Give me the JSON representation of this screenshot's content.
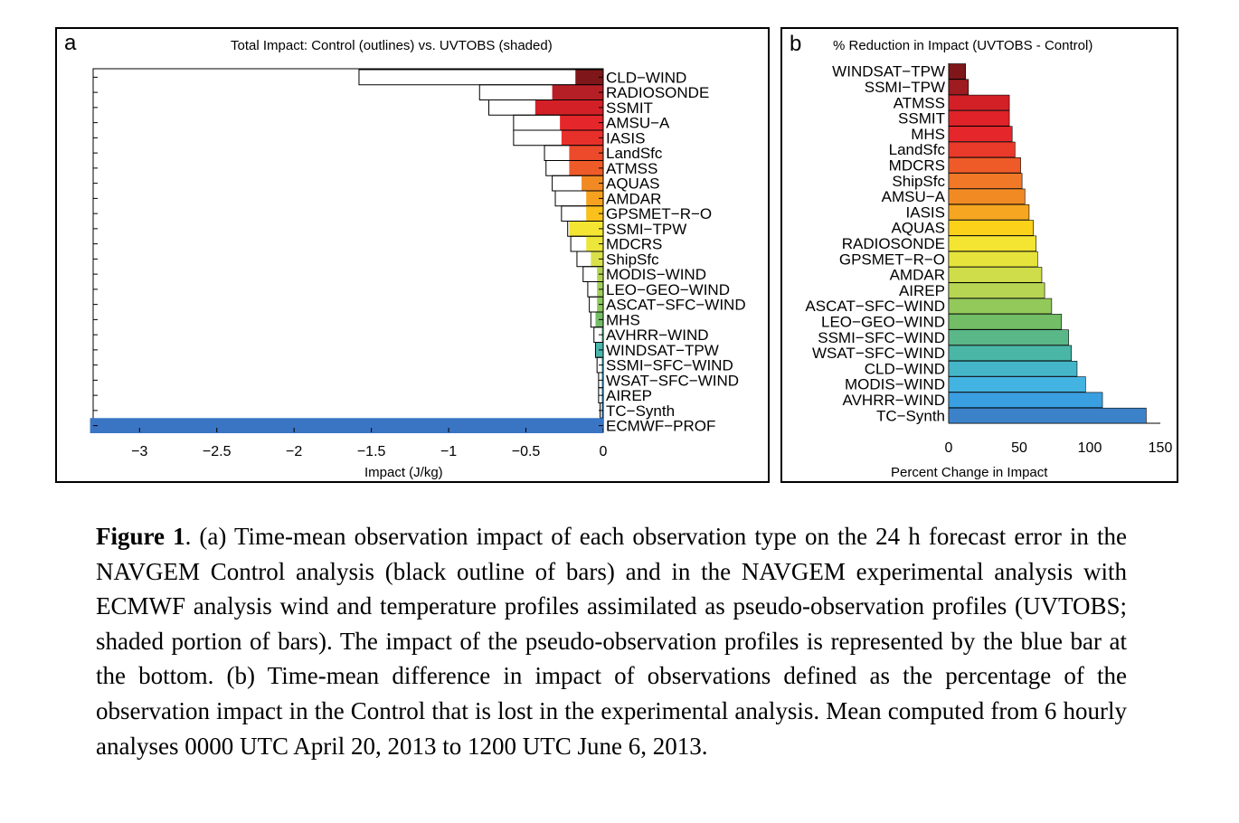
{
  "chart_data": [
    {
      "type": "bar",
      "orientation": "horizontal",
      "panel_label": "a",
      "title": "Total Impact: Control (outlines) vs. UVTOBS (shaded)",
      "xlabel": "Impact (J/kg)",
      "ylabel": "",
      "xlim": [
        -3.3,
        0
      ],
      "xticks": [
        -3,
        -2.5,
        -2,
        -1.5,
        -1,
        -0.5,
        0
      ],
      "xtick_labels": [
        "−3",
        "−2.5",
        "−2",
        "−1.5",
        "−1",
        "−0.5",
        "0"
      ],
      "categories": [
        "CLD−WIND",
        "RADIOSONDE",
        "SSMIT",
        "AMSU−A",
        "IASIS",
        "LandSfc",
        "ATMSS",
        "AQUAS",
        "AMDAR",
        "GPSMET−R−O",
        "SSMI−TPW",
        "MDCRS",
        "ShipSfc",
        "MODIS−WIND",
        "LEO−GEO−WIND",
        "ASCAT−SFC−WIND",
        "MHS",
        "AVHRR−WIND",
        "WINDSAT−TPW",
        "SSMI−SFC−WIND",
        "WSAT−SFC−WIND",
        "AIREP",
        "TC−Synth",
        "ECMWF−PROF"
      ],
      "series": [
        {
          "name": "Control",
          "style": "outline",
          "values": [
            -1.58,
            -0.8,
            -0.74,
            -0.58,
            -0.58,
            -0.38,
            -0.37,
            -0.33,
            -0.31,
            -0.27,
            -0.23,
            -0.21,
            -0.17,
            -0.13,
            -0.1,
            -0.09,
            -0.08,
            -0.06,
            -0.05,
            -0.04,
            -0.03,
            -0.03,
            -0.02,
            0
          ]
        },
        {
          "name": "UVTOBS",
          "style": "shaded",
          "values": [
            -0.18,
            -0.33,
            -0.44,
            -0.28,
            -0.27,
            -0.22,
            -0.22,
            -0.14,
            -0.11,
            -0.11,
            -0.22,
            -0.11,
            -0.08,
            -0.04,
            -0.04,
            -0.04,
            -0.05,
            -0.01,
            -0.05,
            -0.01,
            -0.01,
            -0.01,
            -0.01,
            -3.32
          ]
        }
      ],
      "colors": [
        "#7f1619",
        "#b71f26",
        "#d32027",
        "#e5262a",
        "#e8302b",
        "#ec4a2a",
        "#ee5a28",
        "#f28a24",
        "#f6a220",
        "#fac01b",
        "#f3e532",
        "#ece63b",
        "#d9e04a",
        "#b2d352",
        "#a0ce5c",
        "#8cc75e",
        "#72bd66",
        "#5ab788",
        "#49b6ab",
        "#45b3c6",
        "#43ade0",
        "#3f9fe0",
        "#3d86cf",
        "#3a75c4"
      ],
      "grid": false
    },
    {
      "type": "bar",
      "orientation": "horizontal",
      "panel_label": "b",
      "title": "% Reduction in Impact (UVTOBS - Control)",
      "xlabel": "Percent Change in Impact",
      "ylabel": "",
      "xlim": [
        0,
        150
      ],
      "xticks": [
        0,
        50,
        100,
        150
      ],
      "xtick_labels": [
        "0",
        "50",
        "100",
        "150"
      ],
      "categories": [
        "WINDSAT−TPW",
        "SSMI−TPW",
        "ATMSS",
        "SSMIT",
        "MHS",
        "LandSfc",
        "MDCRS",
        "ShipSfc",
        "AMSU−A",
        "IASIS",
        "AQUAS",
        "RADIOSONDE",
        "GPSMET−R−O",
        "AMDAR",
        "AIREP",
        "ASCAT−SFC−WIND",
        "LEO−GEO−WIND",
        "SSMI−SFC−WIND",
        "WSAT−SFC−WIND",
        "CLD−WIND",
        "MODIS−WIND",
        "AVHRR−WIND",
        "TC−Synth"
      ],
      "values": [
        12,
        14,
        43,
        43,
        45,
        47,
        51,
        52,
        54,
        57,
        60,
        62,
        63,
        66,
        68,
        73,
        80,
        85,
        87,
        91,
        97,
        109,
        140
      ],
      "colors": [
        "#7f1619",
        "#9e1b20",
        "#d32027",
        "#df2329",
        "#e5262a",
        "#ea3a2a",
        "#ee5a28",
        "#f07826",
        "#f28a24",
        "#f6a620",
        "#fbd11a",
        "#f3e532",
        "#e6e43c",
        "#cfdd4a",
        "#b7d552",
        "#92c95a",
        "#72bd66",
        "#5ab788",
        "#4ab6a6",
        "#45b6c8",
        "#43b3e2",
        "#3a9fe0",
        "#3b82c8"
      ],
      "grid": false
    }
  ],
  "caption": {
    "label": "Figure 1",
    "text": ". (a) Time-mean observation impact of each observation type on the 24 h forecast error in the NAVGEM Control analysis (black outline of bars) and in the NAVGEM experimental analysis with ECMWF analysis wind and temperature profiles assimilated as pseudo-observation profiles (UVTOBS; shaded portion of bars). The impact of the pseudo-observation profiles is represented by the blue bar at the bottom. (b) Time-mean difference in impact of observations defined as the percentage of the observation impact in the Control that is lost in the experimental analysis. Mean computed from 6 hourly analyses 0000 UTC April 20, 2013 to 1200 UTC June 6, 2013."
  }
}
